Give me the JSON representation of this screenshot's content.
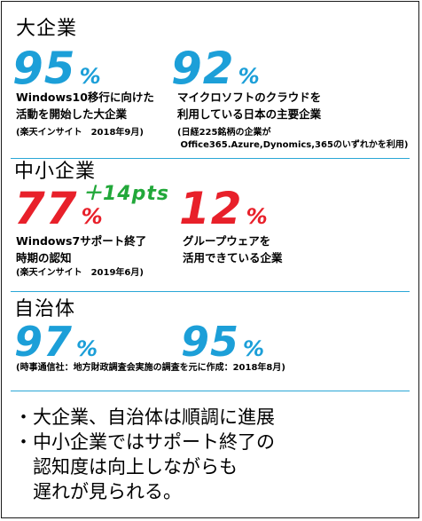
{
  "large": {
    "heading": "大企業",
    "stat1": {
      "value": "95",
      "unit": "%",
      "desc": "Windows10移行に向けた\n活動を開始した大企業",
      "source": "(楽天インサイト　2018年9月)"
    },
    "stat2": {
      "value": "92",
      "unit": "%",
      "desc": "マイクロソフトのクラウドを\n利用している日本の主要企業",
      "source": "(日経225銘柄の企業が\n Office365.Azure,Dynomics,365のいずれかを利用)"
    }
  },
  "sme": {
    "heading": "中小企業",
    "stat1": {
      "value": "77",
      "unit": "%",
      "delta": "＋14pts",
      "desc": "Windows7サポート終了\n時期の認知",
      "source": "(楽天インサイト　2019年6月)"
    },
    "stat2": {
      "value": "12",
      "unit": "%",
      "desc": "グループウェアを\n活用できている企業"
    }
  },
  "municipal": {
    "heading": "自治体",
    "stat1": {
      "value": "97",
      "unit": "%"
    },
    "stat2": {
      "value": "95",
      "unit": "%"
    },
    "source": "(時事通信社：地方財政調査会実施の調査を元に作成：2018年8月)"
  },
  "summary": {
    "line1": "・大企業、自治体は順調に進展",
    "line2": "・中小企業ではサポート終了の",
    "line3": "　認知度は向上しながらも",
    "line4": "　遅れが見られる。"
  },
  "colors": {
    "blue": "#1c9fd8",
    "red": "#e8202a",
    "green": "#22a83a",
    "divider": "#2aa7d6"
  }
}
